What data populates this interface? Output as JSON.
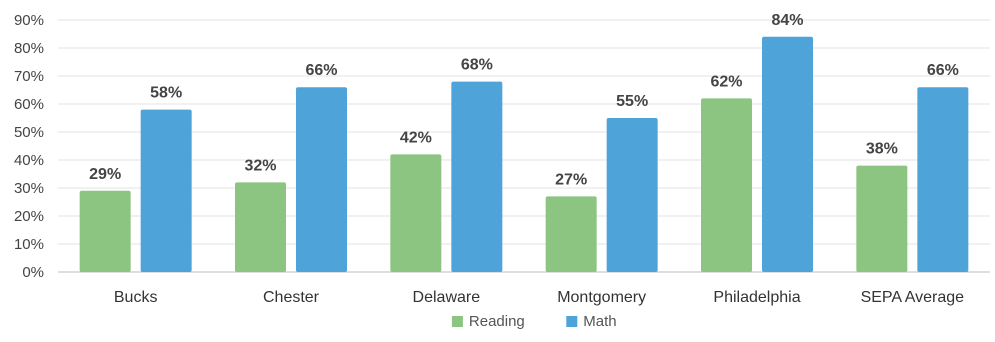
{
  "chart_data": {
    "type": "bar",
    "title": "",
    "xlabel": "",
    "ylabel": "",
    "ylim": [
      0,
      90
    ],
    "yticks": [
      "0%",
      "10%",
      "20%",
      "30%",
      "40%",
      "50%",
      "60%",
      "70%",
      "80%",
      "90%"
    ],
    "categories": [
      "Bucks",
      "Chester",
      "Delaware",
      "Montgomery",
      "Philadelphia",
      "SEPA Average"
    ],
    "series": [
      {
        "name": "Reading",
        "color": "#8cc581",
        "values": [
          29,
          32,
          42,
          27,
          62,
          38
        ],
        "labels": [
          "29%",
          "32%",
          "42%",
          "27%",
          "62%",
          "38%"
        ]
      },
      {
        "name": "Math",
        "color": "#4ea3d8",
        "values": [
          58,
          66,
          68,
          55,
          84,
          66
        ],
        "labels": [
          "58%",
          "66%",
          "68%",
          "55%",
          "84%",
          "66%"
        ]
      }
    ],
    "grid": true,
    "legend_position": "bottom-center"
  }
}
